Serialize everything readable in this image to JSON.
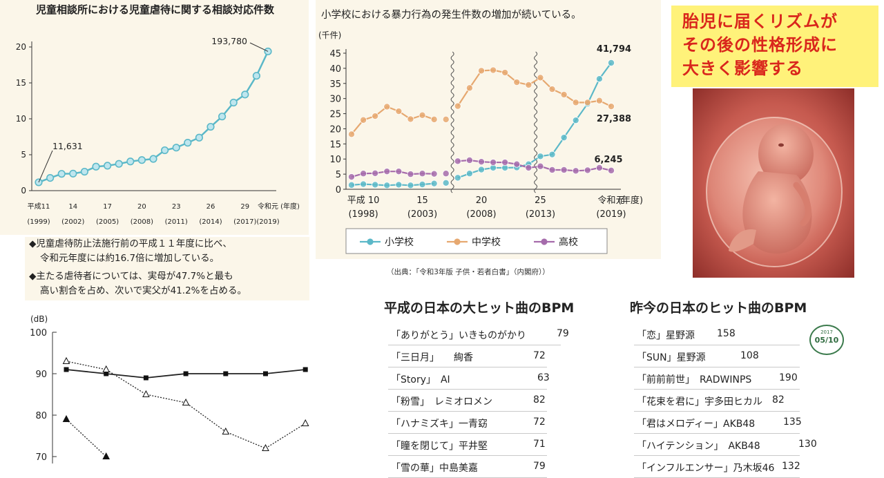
{
  "chart_data": [
    {
      "type": "line",
      "title": "児童相談所における児童虐待に関する相談対応件数",
      "x": [
        "平成11\n(1999)",
        "",
        "",
        "14\n(2002)",
        "",
        "",
        "17\n(2005)",
        "",
        "",
        "20\n(2008)",
        "",
        "",
        "23\n(2011)",
        "",
        "",
        "26\n(2014)",
        "",
        "",
        "29\n(2017)",
        "",
        "令和元\n(2019)"
      ],
      "x_tick_labels": [
        {
          "top": "平成11",
          "bottom": "(1999)"
        },
        {
          "top": "14",
          "bottom": "(2002)"
        },
        {
          "top": "17",
          "bottom": "(2005)"
        },
        {
          "top": "20",
          "bottom": "(2008)"
        },
        {
          "top": "23",
          "bottom": "(2011)"
        },
        {
          "top": "26",
          "bottom": "(2014)"
        },
        {
          "top": "29",
          "bottom": "(2017)"
        },
        {
          "top": "令和元",
          "bottom": "(2019)"
        }
      ],
      "x_unit": "(年度)",
      "y_ticks": [
        "0",
        "5",
        "10",
        "15",
        "20"
      ],
      "ylim": [
        0,
        20
      ],
      "series": [
        {
          "values": [
            1.16,
            1.77,
            2.34,
            2.37,
            2.64,
            3.34,
            3.47,
            3.73,
            4.06,
            4.26,
            4.42,
            5.62,
            5.99,
            6.67,
            7.38,
            8.89,
            10.32,
            12.26,
            13.38,
            15.99,
            19.38
          ]
        }
      ],
      "annotations": [
        {
          "label": "11,631",
          "index": 0
        },
        {
          "label": "193,780",
          "index": 20
        }
      ],
      "grid": false,
      "color": "#5bb8c8"
    },
    {
      "type": "line",
      "title": "小学校における暴力行為の発生件数の増加が続いている。",
      "ylabel": "(千件)",
      "y_ticks": [
        "0",
        "5",
        "10",
        "15",
        "20",
        "25",
        "30",
        "35",
        "40",
        "45"
      ],
      "ylim": [
        0,
        45
      ],
      "x_tick_labels": [
        {
          "top": "平成 10",
          "bottom": "(1998)"
        },
        {
          "top": "15",
          "bottom": "(2003)"
        },
        {
          "top": "20",
          "bottom": "(2008)"
        },
        {
          "top": "25",
          "bottom": "(2013)"
        },
        {
          "top": "令和元",
          "bottom": "(2019)"
        }
      ],
      "x_unit": "(年度)",
      "years": [
        1997,
        1998,
        1999,
        2000,
        2001,
        2002,
        2003,
        2004,
        2005,
        2006,
        2007,
        2008,
        2009,
        2010,
        2011,
        2012,
        2013,
        2014,
        2015,
        2016,
        2017,
        2018,
        2019
      ],
      "series": [
        {
          "name": "小学校",
          "color": "#5bb8c8",
          "values": [
            1.4,
            1.7,
            1.5,
            1.3,
            1.5,
            1.3,
            1.6,
            1.9,
            2.1,
            3.8,
            5.2,
            6.5,
            7.1,
            7.1,
            7.2,
            8.3,
            10.9,
            11.5,
            17.1,
            22.8,
            28.3,
            36.5,
            41.8
          ]
        },
        {
          "name": "中学校",
          "color": "#e6a870",
          "values": [
            18.2,
            22.9,
            24.2,
            27.3,
            25.8,
            23.2,
            24.5,
            23.1,
            23.1,
            27.5,
            33.5,
            39.2,
            39.4,
            38.6,
            35.4,
            34.5,
            36.9,
            33.1,
            31.3,
            28.7,
            28.7,
            29.3,
            27.4
          ]
        },
        {
          "name": "高校",
          "color": "#a56bab",
          "values": [
            4.1,
            5.2,
            5.3,
            5.9,
            5.9,
            5.0,
            5.2,
            5.1,
            5.2,
            9.3,
            9.6,
            9.1,
            8.9,
            8.9,
            8.3,
            7.1,
            7.6,
            6.4,
            6.4,
            6.1,
            6.3,
            7.1,
            6.2
          ]
        }
      ],
      "annotations": [
        {
          "label": "41,794",
          "series": "小学校"
        },
        {
          "label": "27,388",
          "series": "中学校"
        },
        {
          "label": "6,245",
          "series": "高校"
        }
      ],
      "legend": "bottom",
      "grid": false
    },
    {
      "type": "line",
      "ylabel": "(dB)",
      "y_ticks": [
        "100",
        "90",
        "80",
        "70"
      ],
      "ylim": [
        66,
        100
      ],
      "x": [
        1,
        2,
        3,
        4,
        5,
        6,
        7
      ],
      "series": [
        {
          "marker": "square-filled",
          "line": "solid",
          "values": [
            91,
            90,
            89,
            90,
            90,
            90,
            91
          ]
        },
        {
          "marker": "triangle-open",
          "line": "dotted",
          "values": [
            93,
            91,
            85,
            83,
            76,
            72,
            78
          ]
        },
        {
          "marker": "triangle-filled",
          "line": "dotted",
          "values": [
            79,
            70,
            null,
            null,
            null,
            null,
            null
          ]
        }
      ],
      "grid": false
    }
  ],
  "notes": [
    {
      "bullet": "◆",
      "text": "児童虐待防止法施行前の平成１１年度に比べ、",
      "text2": "令和元年度には約16.7倍に増加している。"
    },
    {
      "bullet": "◆",
      "text": "主たる虐待者については、実母が47.7%と最も",
      "text2": "高い割合を占め、次いで実父が41.2%を占める。"
    }
  ],
  "source": "（出典：「令和3年版 子供・若者白書」（内閣府））",
  "banner": {
    "lines": [
      "胎児に届くリズムが",
      "その後の性格形成に",
      "大きく影響する"
    ]
  },
  "bpm_heisei": {
    "heading": "平成の日本の大ヒット曲のBPM",
    "songs": [
      {
        "title": "「ありがとう」いきものがかり",
        "bpm": "79"
      },
      {
        "title": "「三日月」　　絢香",
        "bpm": "72"
      },
      {
        "title": "「Story」　AI",
        "bpm": "63"
      },
      {
        "title": "「粉雪」　レミオロメン",
        "bpm": "82"
      },
      {
        "title": "「ハナミズキ」一青窈",
        "bpm": "72"
      },
      {
        "title": "「瞳を閉じて」平井堅",
        "bpm": "71"
      },
      {
        "title": "「雪の華」中島美嘉",
        "bpm": "79"
      }
    ]
  },
  "bpm_recent": {
    "heading": "昨今の日本のヒット曲のBPM",
    "songs": [
      {
        "title": "「恋」星野源",
        "bpm": "158"
      },
      {
        "title": "「SUN」星野源",
        "bpm": "108"
      },
      {
        "title": "「前前前世」　RADWINPS",
        "bpm": "190"
      },
      {
        "title": "「花束を君に」宇多田ヒカル",
        "bpm": "82"
      },
      {
        "title": "「君はメロディー」AKB48",
        "bpm": "135"
      },
      {
        "title": "「ハイテンション」　AKB48",
        "bpm": "130"
      },
      {
        "title": "「インフルエンサー」乃木坂46",
        "bpm": "132"
      }
    ],
    "badge": {
      "year": "2017",
      "date": "05/10"
    }
  }
}
